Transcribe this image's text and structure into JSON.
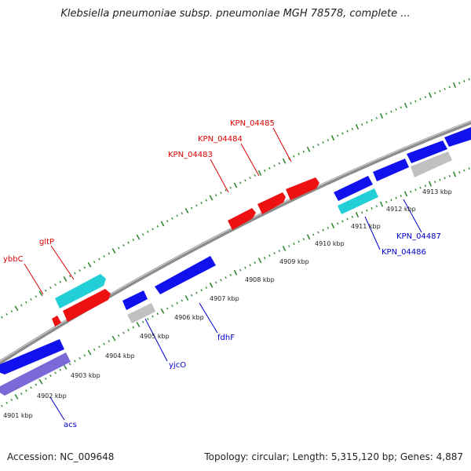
{
  "title": "Klebsiella pneumoniae subsp. pneumoniae MGH 78578, complete ...",
  "footer": {
    "accession": "Accession: NC_009648",
    "summary": "Topology: circular; Length: 5,315,120 bp; Genes: 4,887"
  },
  "colors": {
    "forward_gene": "#ee1111",
    "reverse_gene": "#1111ee",
    "rna_gene": "#22cfd6",
    "pseudo_gene": "#c0c0c0",
    "operon": "#7a6ad8",
    "backbone": "#8c8c8c",
    "forward_label": "#dd0000",
    "reverse_label": "#0000cc",
    "ticks": "#338833"
  },
  "scale": {
    "unit": "kbp",
    "ticks": [
      {
        "value": 4901,
        "label": "4901 kbp"
      },
      {
        "value": 4902,
        "label": "4902 kbp"
      },
      {
        "value": 4903,
        "label": "4903 kbp"
      },
      {
        "value": 4904,
        "label": "4904 kbp"
      },
      {
        "value": 4905,
        "label": "4905 kbp"
      },
      {
        "value": 4906,
        "label": "4906 kbp"
      },
      {
        "value": 4907,
        "label": "4907 kbp"
      },
      {
        "value": 4908,
        "label": "4908 kbp"
      },
      {
        "value": 4909,
        "label": "4909 kbp"
      },
      {
        "value": 4910,
        "label": "4910 kbp"
      },
      {
        "value": 4911,
        "label": "4911 kbp"
      },
      {
        "value": 4912,
        "label": "4912 kbp"
      },
      {
        "value": 4913,
        "label": "4913 kbp"
      }
    ]
  },
  "gene_labels": [
    {
      "text": "ybbC",
      "strand": "forward"
    },
    {
      "text": "gltP",
      "strand": "forward"
    },
    {
      "text": "KPN_04483",
      "strand": "forward"
    },
    {
      "text": "KPN_04484",
      "strand": "forward"
    },
    {
      "text": "KPN_04485",
      "strand": "forward"
    },
    {
      "text": "acs",
      "strand": "reverse"
    },
    {
      "text": "yjcO",
      "strand": "reverse"
    },
    {
      "text": "fdhF",
      "strand": "reverse"
    },
    {
      "text": "KPN_04486",
      "strand": "reverse"
    },
    {
      "text": "KPN_04487",
      "strand": "reverse"
    }
  ]
}
